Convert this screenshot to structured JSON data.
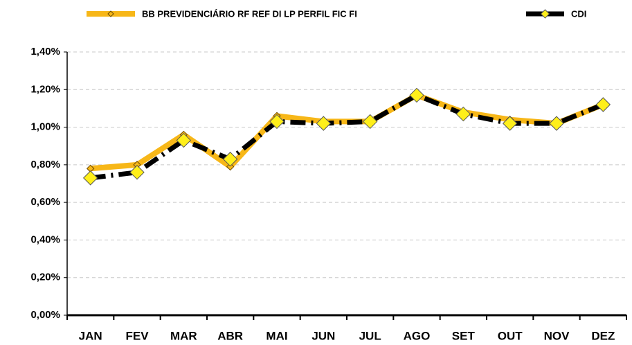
{
  "chart_data": {
    "type": "line",
    "categories": [
      "JAN",
      "FEV",
      "MAR",
      "ABR",
      "MAI",
      "JUN",
      "JUL",
      "AGO",
      "SET",
      "OUT",
      "NOV",
      "DEZ"
    ],
    "series": [
      {
        "name": "BB PREVIDENCIÁRIO RF REF DI LP PERFIL FIC FI",
        "color": "#f7b718",
        "values": [
          0.78,
          0.8,
          0.96,
          0.79,
          1.06,
          1.03,
          1.03,
          1.17,
          1.08,
          1.04,
          1.02,
          1.12
        ]
      },
      {
        "name": "CDI",
        "color": "#000000",
        "values": [
          0.73,
          0.76,
          0.93,
          0.83,
          1.03,
          1.02,
          1.03,
          1.17,
          1.07,
          1.02,
          1.02,
          1.12
        ]
      }
    ],
    "ylim": [
      0,
      1.4
    ],
    "yticks": [
      {
        "value": 0,
        "label": "0,00%"
      },
      {
        "value": 0.2,
        "label": "0,20%"
      },
      {
        "value": 0.4,
        "label": "0,40%"
      },
      {
        "value": 0.6,
        "label": "0,60%"
      },
      {
        "value": 0.8,
        "label": "0,80%"
      },
      {
        "value": 1.0,
        "label": "1,00%"
      },
      {
        "value": 1.2,
        "label": "1,20%"
      },
      {
        "value": 1.4,
        "label": "1,40%"
      }
    ],
    "grid": true,
    "legend": "top"
  }
}
